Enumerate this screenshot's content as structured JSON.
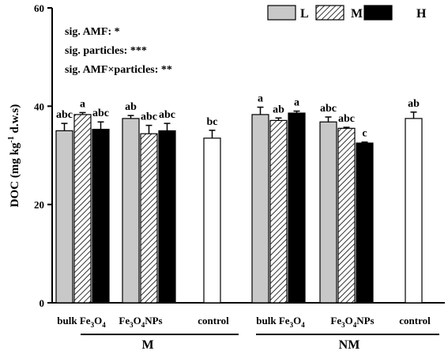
{
  "chart_data": {
    "type": "bar",
    "ylabel": "DOC (mg kg",
    "ylabel_sup": "-1",
    "ylabel_tail": " d.w.s)",
    "ylim": [
      0,
      60
    ],
    "yticks": [
      "0",
      "20",
      "40",
      "60"
    ],
    "ytick_values": [
      0,
      20,
      40,
      60
    ],
    "grid": false,
    "legend_position": "top-right",
    "legend": [
      {
        "key": "L",
        "label": "L",
        "fill": "#c8c8c8"
      },
      {
        "key": "M",
        "label": "M",
        "fill": "hatch"
      },
      {
        "key": "H",
        "label": "H",
        "fill": "#000000"
      }
    ],
    "significance": [
      "sig. AMF: *",
      "sig. particles: ***",
      "sig. AMF×particles: **"
    ],
    "groups": [
      {
        "label": "M",
        "categories": [
          {
            "label": "bulk Fe",
            "sub": "3",
            "mid": "O",
            "sub2": "4",
            "tail": "",
            "bars": [
              {
                "series": "L",
                "value": 35.0,
                "err": 1.5,
                "letter": "abc"
              },
              {
                "series": "M",
                "value": 38.3,
                "err": 0.4,
                "letter": "a"
              },
              {
                "series": "H",
                "value": 35.3,
                "err": 1.5,
                "letter": "abc"
              }
            ]
          },
          {
            "label": "Fe",
            "sub": "3",
            "mid": "O",
            "sub2": "4",
            "tail": "NPs",
            "bars": [
              {
                "series": "L",
                "value": 37.5,
                "err": 0.6,
                "letter": "ab"
              },
              {
                "series": "M",
                "value": 34.4,
                "err": 1.7,
                "letter": "abc"
              },
              {
                "series": "H",
                "value": 35.0,
                "err": 1.5,
                "letter": "abc"
              }
            ]
          },
          {
            "label": "control",
            "sub": "",
            "mid": "",
            "sub2": "",
            "tail": "",
            "bars": [
              {
                "series": "control",
                "value": 33.5,
                "err": 1.6,
                "letter": "bc"
              }
            ]
          }
        ]
      },
      {
        "label": "NM",
        "categories": [
          {
            "label": "bulk Fe",
            "sub": "3",
            "mid": "O",
            "sub2": "4",
            "tail": "",
            "bars": [
              {
                "series": "L",
                "value": 38.3,
                "err": 1.5,
                "letter": "a"
              },
              {
                "series": "M",
                "value": 37.1,
                "err": 0.5,
                "letter": "ab"
              },
              {
                "series": "H",
                "value": 38.6,
                "err": 0.4,
                "letter": "a"
              }
            ]
          },
          {
            "label": "Fe",
            "sub": "3",
            "mid": "O",
            "sub2": "4",
            "tail": "NPs",
            "bars": [
              {
                "series": "L",
                "value": 36.8,
                "err": 1.0,
                "letter": "abc"
              },
              {
                "series": "M",
                "value": 35.5,
                "err": 0.2,
                "letter": "abc"
              },
              {
                "series": "H",
                "value": 32.5,
                "err": 0.2,
                "letter": "c"
              }
            ]
          },
          {
            "label": "control",
            "sub": "",
            "mid": "",
            "sub2": "",
            "tail": "",
            "bars": [
              {
                "series": "control",
                "value": 37.5,
                "err": 1.3,
                "letter": "ab"
              }
            ]
          }
        ]
      }
    ]
  }
}
